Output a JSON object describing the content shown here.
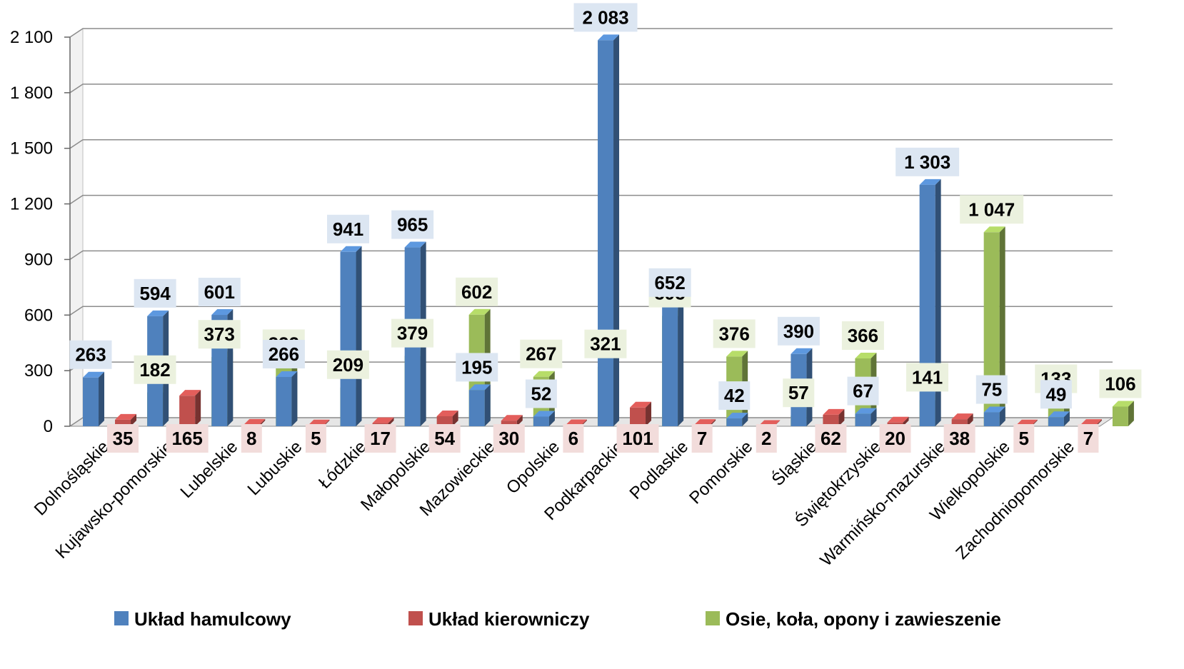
{
  "chart_data": {
    "type": "bar",
    "categories": [
      "Dolnośląskie",
      "Kujawsko-pomorskie",
      "Lubelskie",
      "Lubuskie",
      "Łódzkie",
      "Małopolskie",
      "Mazowieckie",
      "Opolskie",
      "Podkarpackie",
      "Podlaskie",
      "Pomorskie",
      "Śląskie",
      "Świętokrzyskie",
      "Warmińsko-mazurskie",
      "Wielkopolskie",
      "Zachodniopomorskie"
    ],
    "series": [
      {
        "name": "Układ hamulcowy",
        "color": "#4F81BD",
        "label_bg": "#DCE6F2",
        "values": [
          263,
          594,
          601,
          266,
          941,
          965,
          195,
          52,
          2083,
          652,
          42,
          390,
          67,
          1303,
          75,
          49
        ],
        "labels": [
          "263",
          "594",
          "601",
          "266",
          "941",
          "965",
          "195",
          "52",
          "2 083",
          "652",
          "42",
          "390",
          "67",
          "1 303",
          "75",
          "49"
        ]
      },
      {
        "name": "Układ kierowniczy",
        "color": "#C0504D",
        "label_bg": "#F2DCDB",
        "values": [
          35,
          165,
          8,
          5,
          17,
          54,
          30,
          6,
          101,
          7,
          2,
          62,
          20,
          38,
          5,
          7
        ],
        "labels": [
          "35",
          "165",
          "8",
          "5",
          "17",
          "54",
          "30",
          "6",
          "101",
          "7",
          "2",
          "62",
          "20",
          "38",
          "5",
          "7"
        ]
      },
      {
        "name": "Osie, koła, opony i zawieszenie",
        "color": "#9BBB59",
        "label_bg": "#EBF1DE",
        "values": [
          182,
          373,
          322,
          209,
          379,
          602,
          267,
          321,
          595,
          376,
          57,
          366,
          141,
          1047,
          133,
          106
        ],
        "labels": [
          "182",
          "373",
          "322",
          "209",
          "379",
          "602",
          "267",
          "321",
          "595",
          "376",
          "57",
          "366",
          "141",
          "1 047",
          "133",
          "106"
        ]
      }
    ],
    "y_ticks": [
      0,
      300,
      600,
      900,
      1200,
      1500,
      1800,
      2100
    ],
    "y_tick_labels": [
      "0",
      "300",
      "600",
      "900",
      "1 200",
      "1 500",
      "1 800",
      "2 100"
    ],
    "ylim": [
      0,
      2100
    ],
    "grid": true,
    "legend_position": "bottom"
  }
}
